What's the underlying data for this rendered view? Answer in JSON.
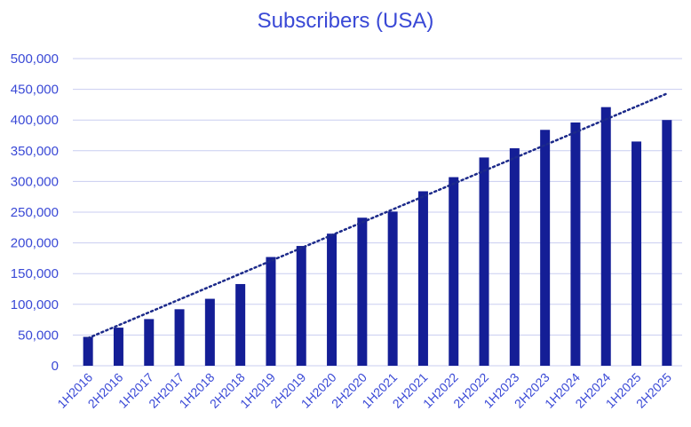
{
  "chart_data": {
    "type": "bar",
    "title": "Subscribers (USA)",
    "xlabel": "",
    "ylabel": "",
    "ylim": [
      0,
      500000
    ],
    "yticks": [
      0,
      50000,
      100000,
      150000,
      200000,
      250000,
      300000,
      350000,
      400000,
      450000,
      500000
    ],
    "ytick_labels": [
      "0",
      "50,000",
      "100,000",
      "150,000",
      "200,000",
      "250,000",
      "300,000",
      "350,000",
      "400,000",
      "450,000",
      "500,000"
    ],
    "categories": [
      "1H2016",
      "2H2016",
      "1H2017",
      "2H2017",
      "1H2018",
      "2H2018",
      "1H2019",
      "2H2019",
      "1H2020",
      "2H2020",
      "1H2021",
      "2H2021",
      "1H2022",
      "2H2022",
      "1H2023",
      "2H2023",
      "1H2024",
      "2H2024",
      "1H2025",
      "2H2025"
    ],
    "values": [
      47000,
      62000,
      76000,
      92000,
      109000,
      133000,
      177000,
      195000,
      215000,
      241000,
      251000,
      284000,
      307000,
      339000,
      354000,
      384000,
      396000,
      421000,
      365000,
      400000
    ],
    "trendline": {
      "type": "linear",
      "style": "dotted",
      "start": 45000,
      "end": 443000
    },
    "grid": true,
    "legend": "none",
    "colors": {
      "bar": "#141e96",
      "trend": "#1c2a8a",
      "grid": "#c9cdf0",
      "text": "#3a49d6"
    }
  }
}
